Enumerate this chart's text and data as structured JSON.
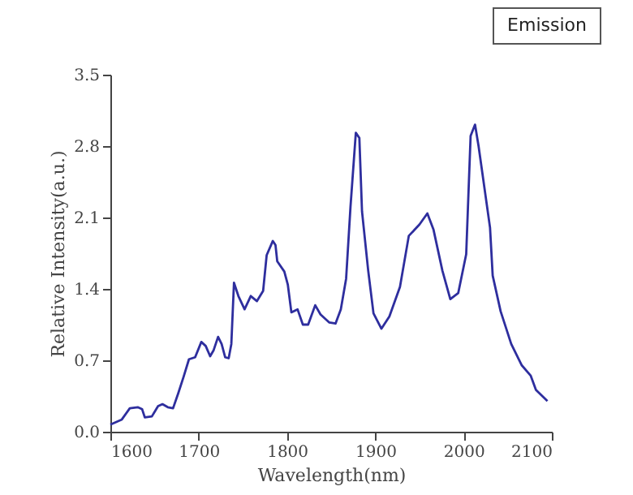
{
  "chart_data": {
    "type": "line",
    "xlabel": "Wavelength(nm)",
    "ylabel": "Relative Intensity(a.u.)",
    "annotations": [
      "Emission"
    ],
    "xlim": [
      1600,
      2100
    ],
    "xticks": [
      1600,
      1700,
      1800,
      1900,
      2000,
      2100
    ],
    "ylim": [
      0,
      3.5
    ],
    "yticks": [
      {
        "value": 0,
        "label": "0.0"
      },
      0.7,
      1.4,
      2.1,
      2.8,
      3.5
    ],
    "grid": false,
    "marker": "none",
    "line_style": "solid",
    "series": [
      {
        "color": "#2e2e9e",
        "x": [
          1600,
          1613,
          1622,
          1631,
          1636,
          1639,
          1647,
          1654,
          1659,
          1665,
          1671,
          1677,
          1683,
          1689,
          1696,
          1703,
          1708,
          1713,
          1717,
          1722,
          1726,
          1730,
          1734,
          1737,
          1740,
          1745,
          1752,
          1759,
          1766,
          1773,
          1777,
          1784,
          1787,
          1789,
          1797,
          1801,
          1805,
          1812,
          1818,
          1824,
          1832,
          1838,
          1848,
          1855,
          1861,
          1867,
          1872,
          1878,
          1882,
          1885,
          1892,
          1898,
          1907,
          1916,
          1928,
          1938,
          1950,
          1959,
          1966,
          1976,
          1985,
          1994,
          2003,
          2008,
          2013,
          2017,
          2030,
          2033,
          2042,
          2054,
          2066,
          2076,
          2082,
          2095
        ],
        "values": [
          0.07,
          0.12,
          0.23,
          0.24,
          0.22,
          0.14,
          0.15,
          0.25,
          0.27,
          0.24,
          0.23,
          0.38,
          0.54,
          0.71,
          0.73,
          0.88,
          0.84,
          0.74,
          0.8,
          0.93,
          0.86,
          0.73,
          0.72,
          0.86,
          1.46,
          1.33,
          1.2,
          1.33,
          1.28,
          1.38,
          1.73,
          1.87,
          1.83,
          1.67,
          1.57,
          1.44,
          1.17,
          1.2,
          1.05,
          1.05,
          1.24,
          1.15,
          1.07,
          1.06,
          1.2,
          1.5,
          2.21,
          2.93,
          2.88,
          2.16,
          1.58,
          1.16,
          1.01,
          1.13,
          1.42,
          1.92,
          2.03,
          2.14,
          1.98,
          1.58,
          1.3,
          1.36,
          1.74,
          2.9,
          3.01,
          2.8,
          2.0,
          1.53,
          1.18,
          0.86,
          0.65,
          0.55,
          0.41,
          0.3
        ]
      }
    ]
  }
}
